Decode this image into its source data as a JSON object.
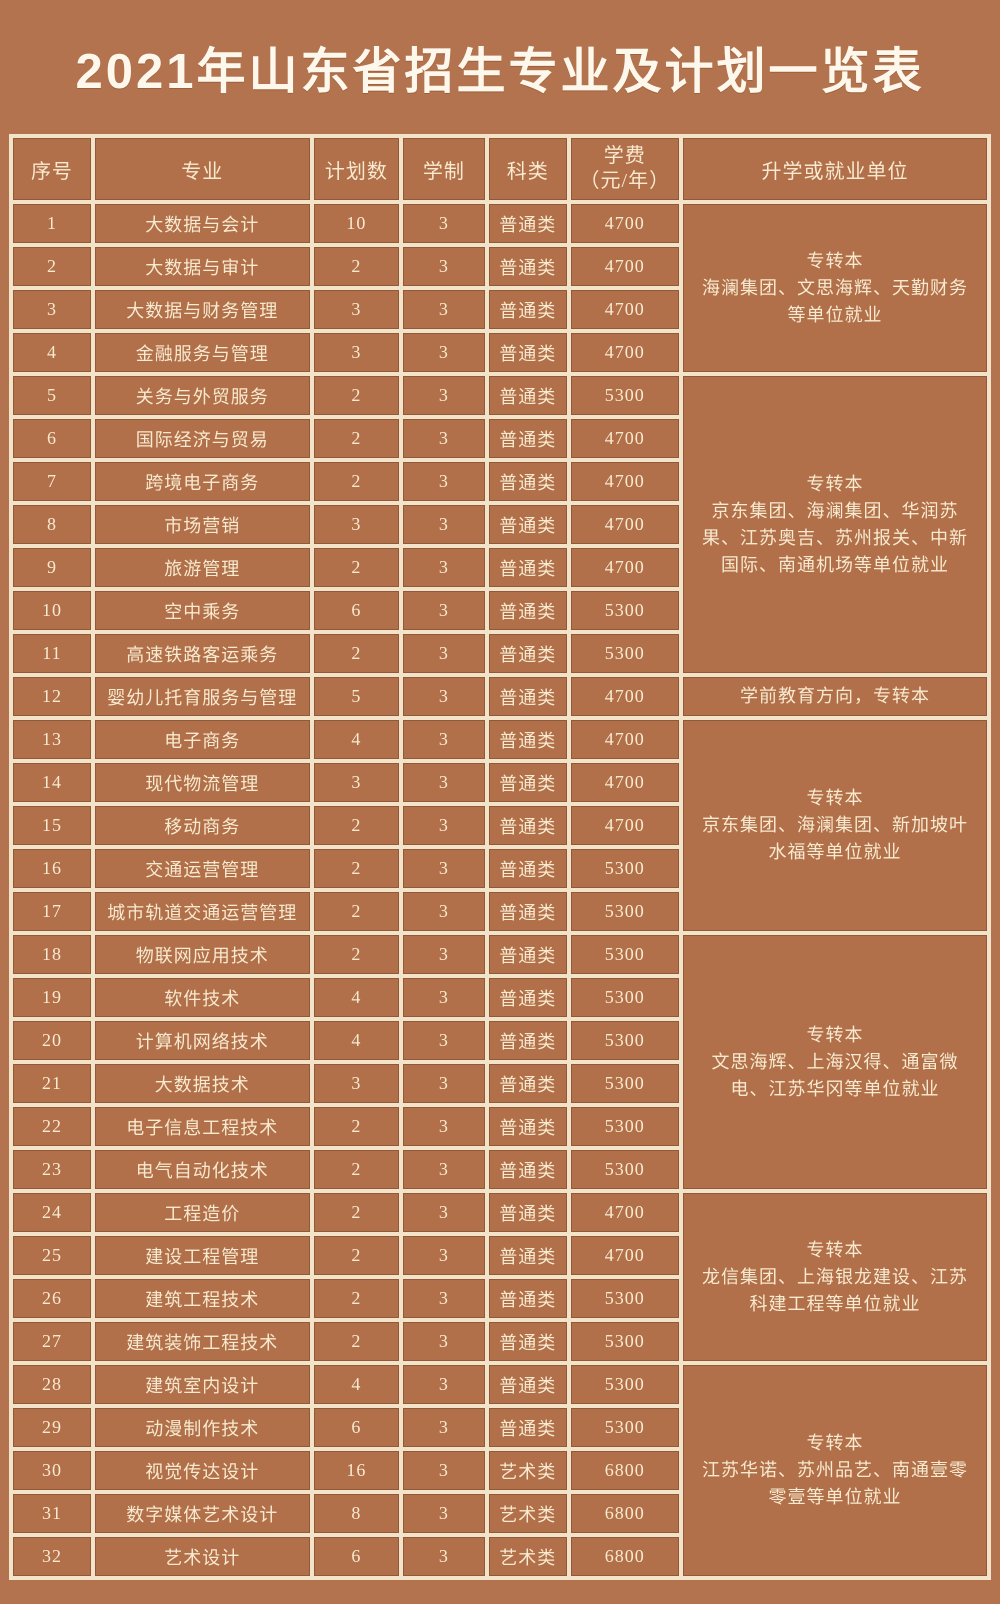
{
  "title": "2021年山东省招生专业及计划一览表",
  "colors": {
    "page_background": "#b2734e",
    "cell_background": "#b1704a",
    "grid_line": "#f2e3c9",
    "cell_text": "#f8ead0",
    "title_text": "#fdf7ec"
  },
  "table": {
    "headers": {
      "no": "序号",
      "major": "专业",
      "plan": "计划数",
      "years": "学制",
      "category": "科类",
      "fee_line1": "学费",
      "fee_line2": "（元/年）",
      "remark": "升学或就业单位"
    },
    "rows": [
      {
        "no": "1",
        "major": "大数据与会计",
        "plan": "10",
        "years": "3",
        "category": "普通类",
        "fee": "4700"
      },
      {
        "no": "2",
        "major": "大数据与审计",
        "plan": "2",
        "years": "3",
        "category": "普通类",
        "fee": "4700"
      },
      {
        "no": "3",
        "major": "大数据与财务管理",
        "plan": "3",
        "years": "3",
        "category": "普通类",
        "fee": "4700"
      },
      {
        "no": "4",
        "major": "金融服务与管理",
        "plan": "3",
        "years": "3",
        "category": "普通类",
        "fee": "4700"
      },
      {
        "no": "5",
        "major": "关务与外贸服务",
        "plan": "2",
        "years": "3",
        "category": "普通类",
        "fee": "5300"
      },
      {
        "no": "6",
        "major": "国际经济与贸易",
        "plan": "2",
        "years": "3",
        "category": "普通类",
        "fee": "4700"
      },
      {
        "no": "7",
        "major": "跨境电子商务",
        "plan": "2",
        "years": "3",
        "category": "普通类",
        "fee": "4700"
      },
      {
        "no": "8",
        "major": "市场营销",
        "plan": "3",
        "years": "3",
        "category": "普通类",
        "fee": "4700"
      },
      {
        "no": "9",
        "major": "旅游管理",
        "plan": "2",
        "years": "3",
        "category": "普通类",
        "fee": "4700"
      },
      {
        "no": "10",
        "major": "空中乘务",
        "plan": "6",
        "years": "3",
        "category": "普通类",
        "fee": "5300"
      },
      {
        "no": "11",
        "major": "高速铁路客运乘务",
        "plan": "2",
        "years": "3",
        "category": "普通类",
        "fee": "5300"
      },
      {
        "no": "12",
        "major": "婴幼儿托育服务与管理",
        "plan": "5",
        "years": "3",
        "category": "普通类",
        "fee": "4700"
      },
      {
        "no": "13",
        "major": "电子商务",
        "plan": "4",
        "years": "3",
        "category": "普通类",
        "fee": "4700"
      },
      {
        "no": "14",
        "major": "现代物流管理",
        "plan": "3",
        "years": "3",
        "category": "普通类",
        "fee": "4700"
      },
      {
        "no": "15",
        "major": "移动商务",
        "plan": "2",
        "years": "3",
        "category": "普通类",
        "fee": "4700"
      },
      {
        "no": "16",
        "major": "交通运营管理",
        "plan": "2",
        "years": "3",
        "category": "普通类",
        "fee": "5300"
      },
      {
        "no": "17",
        "major": "城市轨道交通运营管理",
        "plan": "2",
        "years": "3",
        "category": "普通类",
        "fee": "5300"
      },
      {
        "no": "18",
        "major": "物联网应用技术",
        "plan": "2",
        "years": "3",
        "category": "普通类",
        "fee": "5300"
      },
      {
        "no": "19",
        "major": "软件技术",
        "plan": "4",
        "years": "3",
        "category": "普通类",
        "fee": "5300"
      },
      {
        "no": "20",
        "major": "计算机网络技术",
        "plan": "4",
        "years": "3",
        "category": "普通类",
        "fee": "5300"
      },
      {
        "no": "21",
        "major": "大数据技术",
        "plan": "3",
        "years": "3",
        "category": "普通类",
        "fee": "5300"
      },
      {
        "no": "22",
        "major": "电子信息工程技术",
        "plan": "2",
        "years": "3",
        "category": "普通类",
        "fee": "5300"
      },
      {
        "no": "23",
        "major": "电气自动化技术",
        "plan": "2",
        "years": "3",
        "category": "普通类",
        "fee": "5300"
      },
      {
        "no": "24",
        "major": "工程造价",
        "plan": "2",
        "years": "3",
        "category": "普通类",
        "fee": "4700"
      },
      {
        "no": "25",
        "major": "建设工程管理",
        "plan": "2",
        "years": "3",
        "category": "普通类",
        "fee": "4700"
      },
      {
        "no": "26",
        "major": "建筑工程技术",
        "plan": "2",
        "years": "3",
        "category": "普通类",
        "fee": "5300"
      },
      {
        "no": "27",
        "major": "建筑装饰工程技术",
        "plan": "2",
        "years": "3",
        "category": "普通类",
        "fee": "5300"
      },
      {
        "no": "28",
        "major": "建筑室内设计",
        "plan": "4",
        "years": "3",
        "category": "普通类",
        "fee": "5300"
      },
      {
        "no": "29",
        "major": "动漫制作技术",
        "plan": "6",
        "years": "3",
        "category": "普通类",
        "fee": "5300"
      },
      {
        "no": "30",
        "major": "视觉传达设计",
        "plan": "16",
        "years": "3",
        "category": "艺术类",
        "fee": "6800"
      },
      {
        "no": "31",
        "major": "数字媒体艺术设计",
        "plan": "8",
        "years": "3",
        "category": "艺术类",
        "fee": "6800"
      },
      {
        "no": "32",
        "major": "艺术设计",
        "plan": "6",
        "years": "3",
        "category": "艺术类",
        "fee": "6800"
      }
    ],
    "remark_groups": [
      {
        "start_row": "1",
        "row_span": 4,
        "lines": [
          "专转本",
          "海澜集团、文思海辉、天勤财务等单位就业"
        ]
      },
      {
        "start_row": "5",
        "row_span": 7,
        "lines": [
          "专转本",
          "京东集团、海澜集团、华润苏果、江苏奥吉、苏州报关、中新国际、南通机场等单位就业"
        ]
      },
      {
        "start_row": "12",
        "row_span": 1,
        "lines": [
          "学前教育方向，专转本"
        ]
      },
      {
        "start_row": "13",
        "row_span": 5,
        "lines": [
          "专转本",
          "京东集团、海澜集团、新加坡叶水福等单位就业"
        ]
      },
      {
        "start_row": "18",
        "row_span": 6,
        "lines": [
          "专转本",
          "文思海辉、上海汉得、通富微电、江苏华冈等单位就业"
        ]
      },
      {
        "start_row": "24",
        "row_span": 4,
        "lines": [
          "专转本",
          "龙信集团、上海银龙建设、江苏科建工程等单位就业"
        ]
      },
      {
        "start_row": "28",
        "row_span": 5,
        "lines": [
          "专转本",
          "江苏华诺、苏州品艺、南通壹零零壹等单位就业"
        ]
      }
    ]
  }
}
